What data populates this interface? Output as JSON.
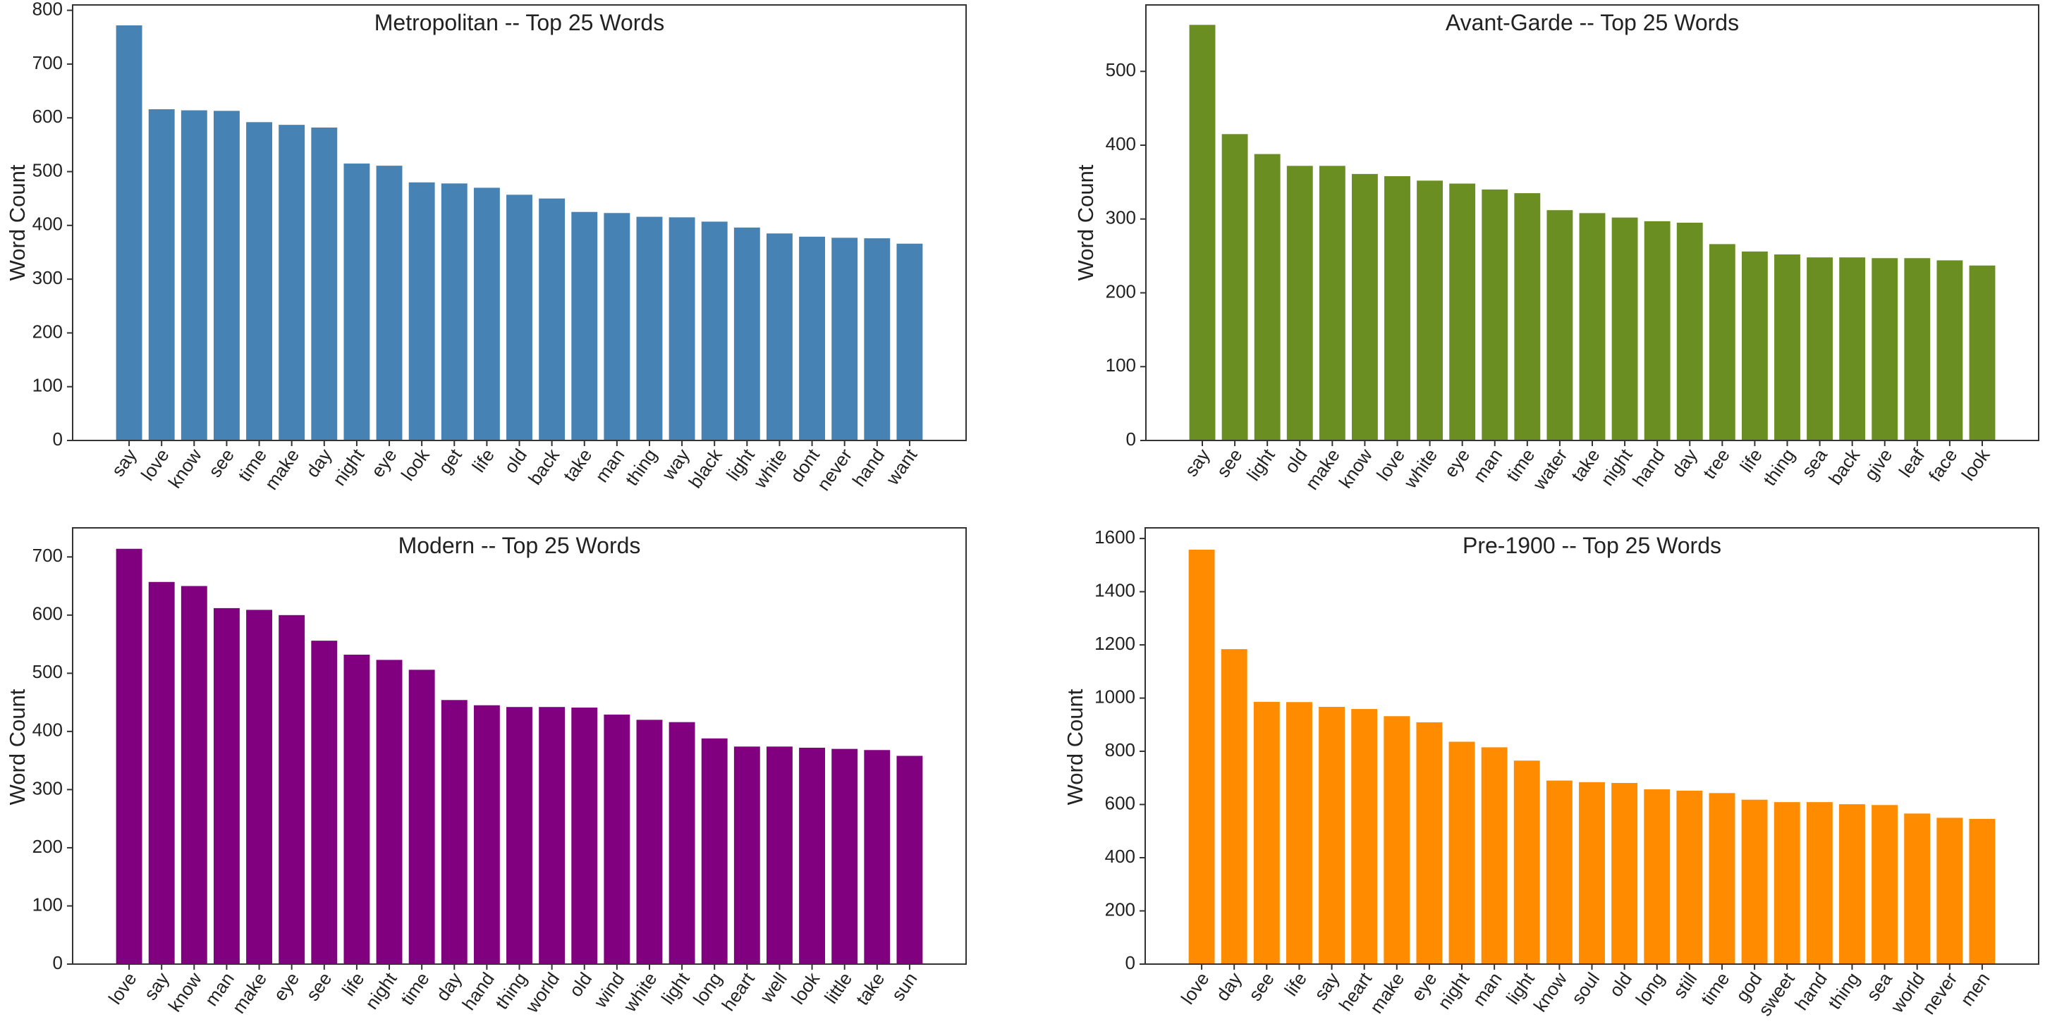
{
  "chart_data": [
    {
      "type": "bar",
      "title": "Metropolitan -- Top 25 Words",
      "ylabel": "Word Count",
      "xlabel": "",
      "color": "#4682b4",
      "ylim": [
        0,
        810
      ],
      "yticks": [
        0,
        100,
        200,
        300,
        400,
        500,
        600,
        700,
        800
      ],
      "categories": [
        "say",
        "love",
        "know",
        "see",
        "time",
        "make",
        "day",
        "night",
        "eye",
        "look",
        "get",
        "life",
        "old",
        "back",
        "take",
        "man",
        "thing",
        "way",
        "black",
        "light",
        "white",
        "dont",
        "never",
        "hand",
        "want"
      ],
      "values": [
        772,
        616,
        614,
        613,
        592,
        587,
        582,
        515,
        511,
        480,
        478,
        470,
        457,
        450,
        425,
        423,
        416,
        415,
        407,
        396,
        385,
        379,
        377,
        376,
        366
      ]
    },
    {
      "type": "bar",
      "title": "Avant-Garde -- Top 25 Words",
      "ylabel": "Word Count",
      "xlabel": "",
      "color": "#6b8e23",
      "ylim": [
        0,
        590
      ],
      "yticks": [
        0,
        100,
        200,
        300,
        400,
        500
      ],
      "categories": [
        "say",
        "see",
        "light",
        "old",
        "make",
        "know",
        "love",
        "white",
        "eye",
        "man",
        "time",
        "water",
        "take",
        "night",
        "hand",
        "day",
        "tree",
        "life",
        "thing",
        "sea",
        "back",
        "give",
        "leaf",
        "face",
        "look"
      ],
      "values": [
        563,
        415,
        388,
        372,
        372,
        361,
        358,
        352,
        348,
        340,
        335,
        312,
        308,
        302,
        297,
        295,
        266,
        256,
        252,
        248,
        248,
        247,
        247,
        244,
        237
      ]
    },
    {
      "type": "bar",
      "title": "Modern -- Top 25 Words",
      "ylabel": "Word Count",
      "xlabel": "",
      "color": "#800080",
      "ylim": [
        0,
        750
      ],
      "yticks": [
        0,
        100,
        200,
        300,
        400,
        500,
        600,
        700
      ],
      "categories": [
        "love",
        "say",
        "know",
        "man",
        "make",
        "eye",
        "see",
        "life",
        "night",
        "time",
        "day",
        "hand",
        "thing",
        "world",
        "old",
        "wind",
        "white",
        "light",
        "long",
        "heart",
        "well",
        "look",
        "little",
        "take",
        "sun"
      ],
      "values": [
        714,
        657,
        650,
        612,
        609,
        600,
        556,
        532,
        523,
        506,
        454,
        445,
        442,
        442,
        441,
        429,
        420,
        416,
        388,
        374,
        374,
        372,
        370,
        368,
        358
      ]
    },
    {
      "type": "bar",
      "title": "Pre-1900 -- Top 25 Words",
      "ylabel": "Word Count",
      "xlabel": "",
      "color": "#ff8c00",
      "ylim": [
        0,
        1640
      ],
      "yticks": [
        0,
        200,
        400,
        600,
        800,
        1000,
        1200,
        1400,
        1600
      ],
      "categories": [
        "love",
        "day",
        "see",
        "life",
        "say",
        "heart",
        "make",
        "eye",
        "night",
        "man",
        "light",
        "know",
        "soul",
        "old",
        "long",
        "still",
        "time",
        "god",
        "sweet",
        "hand",
        "thing",
        "sea",
        "world",
        "never",
        "men"
      ],
      "values": [
        1558,
        1184,
        986,
        985,
        967,
        959,
        932,
        909,
        836,
        815,
        765,
        690,
        684,
        681,
        657,
        652,
        643,
        618,
        609,
        609,
        601,
        598,
        566,
        550,
        546
      ]
    }
  ]
}
